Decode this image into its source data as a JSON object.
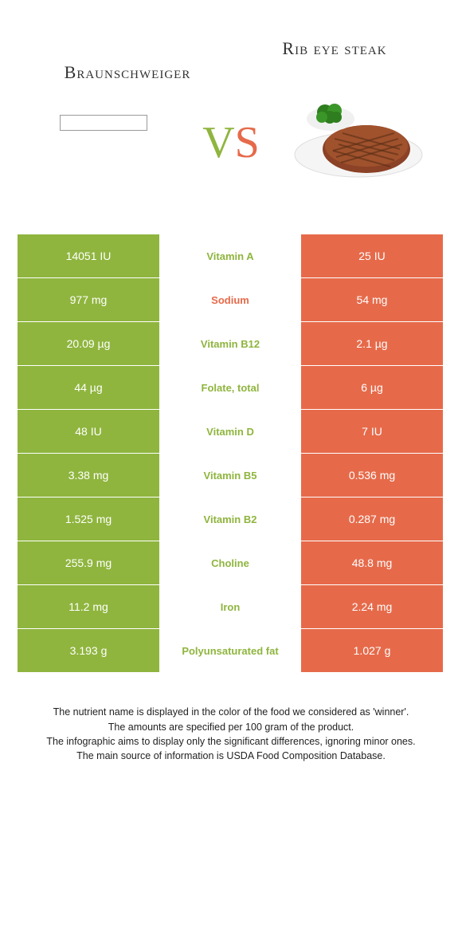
{
  "colors": {
    "left_food": "#8fb53e",
    "right_food": "#e66a4a",
    "white": "#ffffff",
    "text_dark": "#333333"
  },
  "header": {
    "left_title": "Braunschweiger",
    "right_title": "Rib eye steak",
    "vs_v": "V",
    "vs_s": "S"
  },
  "rows": [
    {
      "left": "14051 IU",
      "label": "Vitamin A",
      "right": "25 IU",
      "winner": "left"
    },
    {
      "left": "977 mg",
      "label": "Sodium",
      "right": "54 mg",
      "winner": "right"
    },
    {
      "left": "20.09 µg",
      "label": "Vitamin B12",
      "right": "2.1 µg",
      "winner": "left"
    },
    {
      "left": "44 µg",
      "label": "Folate, total",
      "right": "6 µg",
      "winner": "left"
    },
    {
      "left": "48 IU",
      "label": "Vitamin D",
      "right": "7 IU",
      "winner": "left"
    },
    {
      "left": "3.38 mg",
      "label": "Vitamin B5",
      "right": "0.536 mg",
      "winner": "left"
    },
    {
      "left": "1.525 mg",
      "label": "Vitamin B2",
      "right": "0.287 mg",
      "winner": "left"
    },
    {
      "left": "255.9 mg",
      "label": "Choline",
      "right": "48.8 mg",
      "winner": "left"
    },
    {
      "left": "11.2 mg",
      "label": "Iron",
      "right": "2.24 mg",
      "winner": "left"
    },
    {
      "left": "3.193 g",
      "label": "Polyunsaturated fat",
      "right": "1.027 g",
      "winner": "left"
    }
  ],
  "footer": {
    "line1": "The nutrient name is displayed in the color of the food we considered as 'winner'.",
    "line2": "The amounts are specified per 100 gram of the product.",
    "line3": "The infographic aims to display only the significant differences, ignoring minor ones.",
    "line4": "The main source of information is USDA Food Composition Database."
  }
}
